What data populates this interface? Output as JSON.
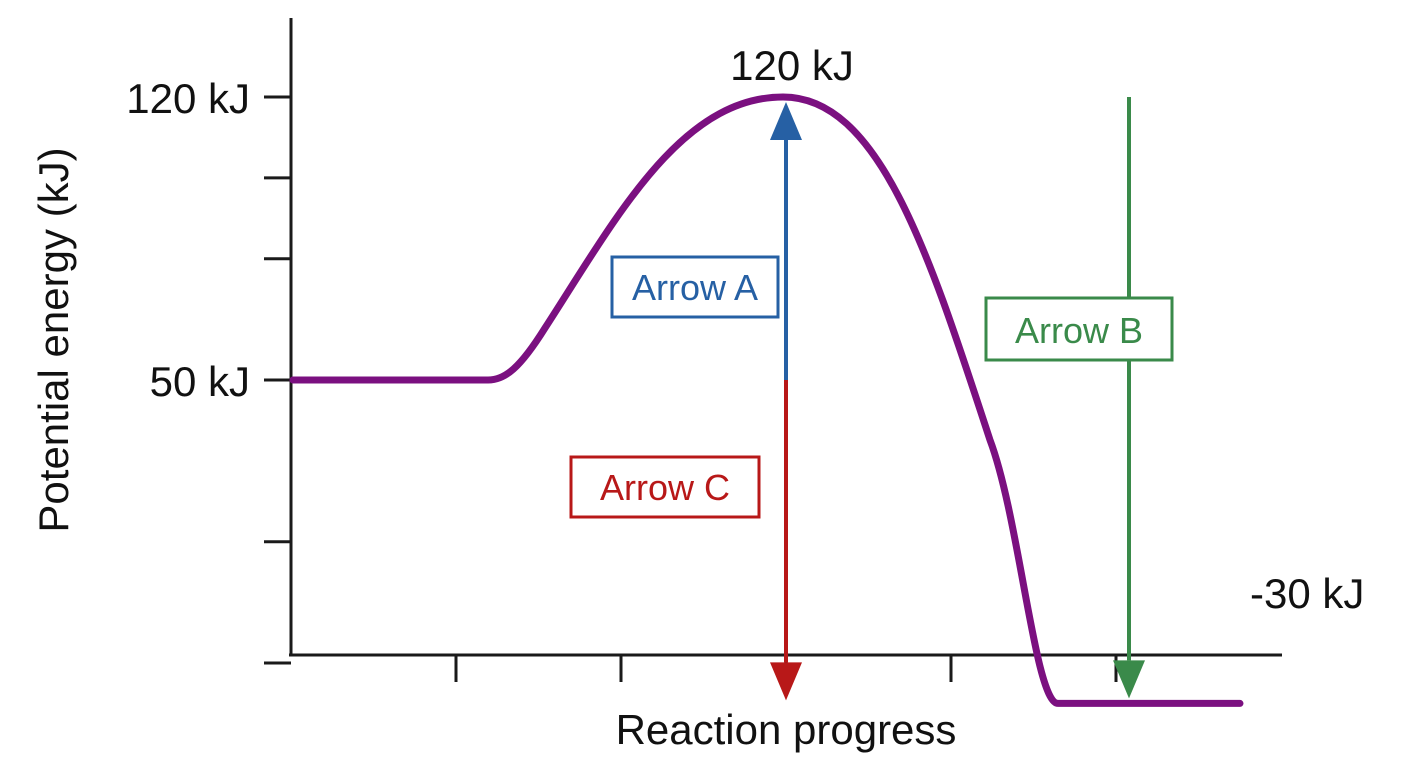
{
  "chart_data": {
    "type": "line",
    "xlabel": "Reaction progress",
    "ylabel": "Potential energy (kJ)",
    "ylim": [
      -40,
      150
    ],
    "y_tick_values": [
      -20,
      10,
      50,
      80,
      100,
      120
    ],
    "y_tick_labels": [
      {
        "value": 120,
        "text": "120 kJ"
      },
      {
        "value": 50,
        "text": "50 kJ"
      }
    ],
    "x_tick_count": 5,
    "curve": {
      "color": "#7b1080",
      "reactant_energy": 50,
      "peak_energy": 120,
      "product_energy": -30
    },
    "annotations": {
      "peak_label": "120 kJ",
      "product_label": "-30 kJ"
    },
    "arrows": [
      {
        "name": "Arrow A",
        "color": "#2660a4",
        "from": 50,
        "to": 120
      },
      {
        "name": "Arrow B",
        "color": "#3a8a4a",
        "from": 120,
        "to": -30
      },
      {
        "name": "Arrow C",
        "color": "#b81818",
        "from": 50,
        "to": -30
      }
    ]
  }
}
